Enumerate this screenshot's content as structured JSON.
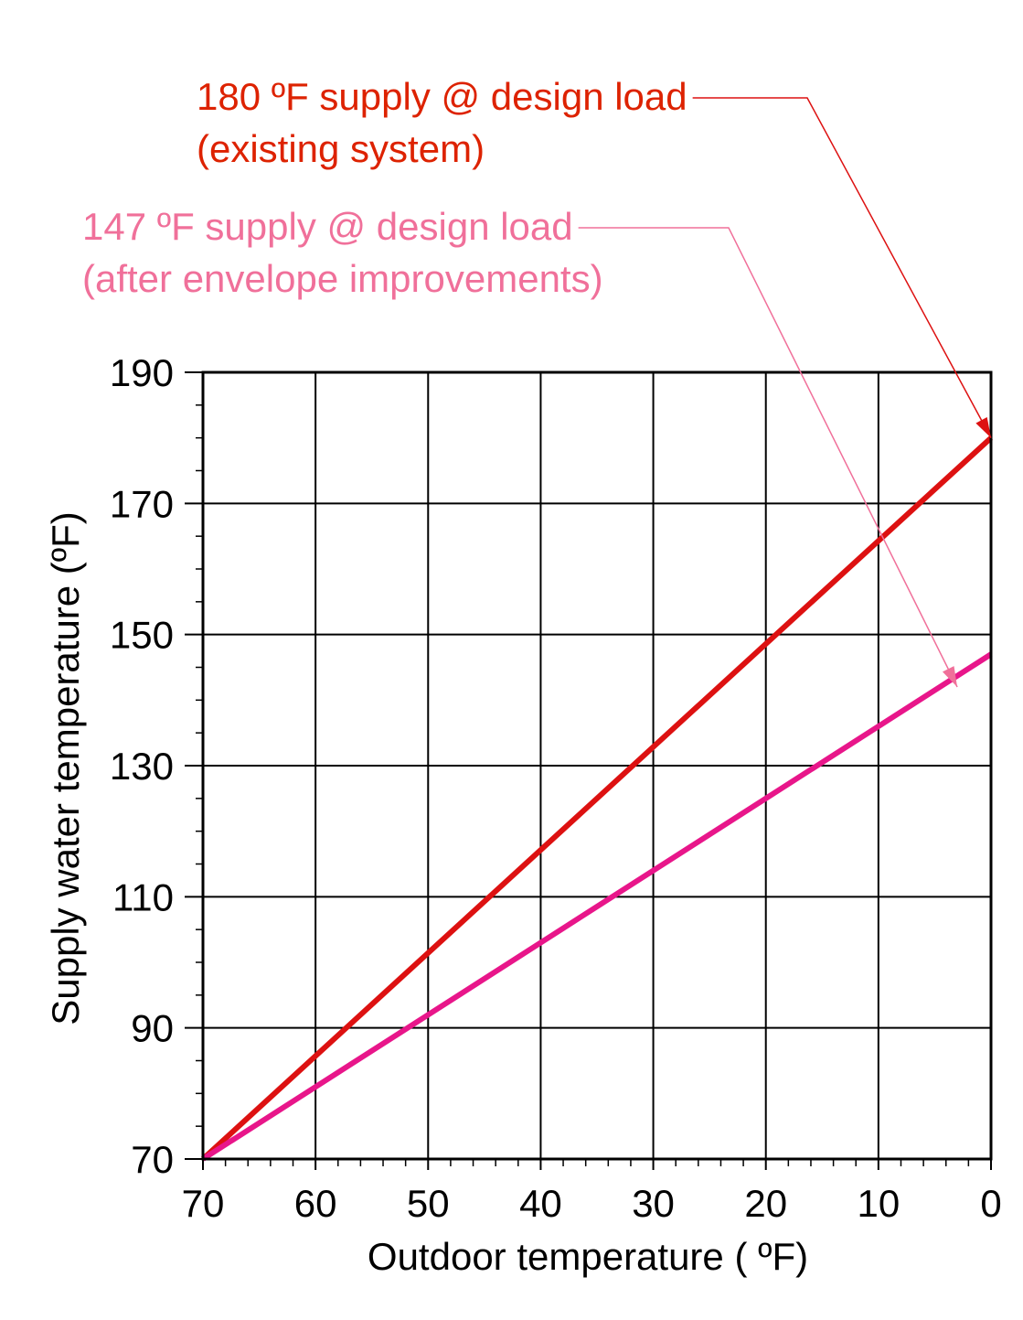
{
  "chart_data": {
    "type": "line",
    "title": "",
    "xlabel": "Outdoor temperature ( ºF)",
    "ylabel": "Supply water temperature (ºF)",
    "xlim": [
      70,
      0
    ],
    "ylim": [
      70,
      190
    ],
    "x_reversed": true,
    "grid": true,
    "x_ticks": [
      70,
      60,
      50,
      40,
      30,
      20,
      10,
      0
    ],
    "y_ticks": [
      70,
      90,
      110,
      130,
      150,
      170,
      190
    ],
    "x_tick_labels": [
      "70",
      "60",
      "50",
      "40",
      "30",
      "20",
      "10",
      "0"
    ],
    "y_tick_labels": [
      "70",
      "90",
      "110",
      "130",
      "150",
      "170",
      "190"
    ],
    "series": [
      {
        "key": "existing",
        "color": "#dd1111",
        "x": [
          70,
          0
        ],
        "y": [
          70,
          180
        ]
      },
      {
        "key": "improved",
        "color": "#e8168a",
        "x": [
          70,
          0
        ],
        "y": [
          70,
          147
        ]
      }
    ],
    "annotations": [
      {
        "key": "existing",
        "lines": [
          "180 ºF supply @ design load",
          "(existing system)"
        ],
        "color": "#dd2200",
        "arrow_color": "#dd1111",
        "points_to": {
          "x": 0,
          "y": 180
        }
      },
      {
        "key": "improved",
        "lines": [
          "147 ºF supply @ design load",
          "(after envelope improvements)"
        ],
        "color": "#f0709a",
        "arrow_color": "#f0709a",
        "points_to": {
          "x": 3,
          "y": 142
        }
      }
    ]
  }
}
